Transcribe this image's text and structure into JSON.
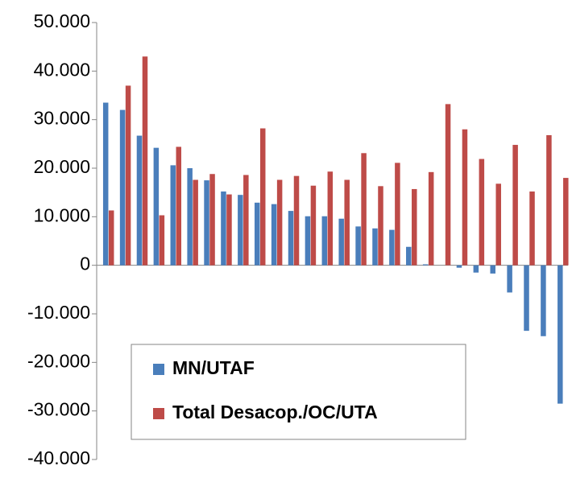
{
  "chart_data": {
    "type": "bar",
    "categories": [
      null,
      null,
      null,
      null,
      null,
      null,
      null,
      null,
      null,
      null,
      null,
      null,
      null,
      null,
      null,
      null,
      null,
      null,
      null,
      null,
      null,
      null,
      null,
      null,
      null,
      null,
      null,
      null
    ],
    "series": [
      {
        "name": "MN/UTAF",
        "color": "#4a7ebb",
        "values": [
          33500,
          32000,
          26700,
          24200,
          20600,
          20000,
          17500,
          15200,
          14500,
          12900,
          12600,
          11200,
          10100,
          10100,
          9600,
          8000,
          7600,
          7300,
          3800,
          200,
          0,
          -500,
          -1500,
          -1700,
          -5600,
          -13500,
          -14600,
          -28500
        ]
      },
      {
        "name": "Total Desacop./OC/UTA",
        "color": "#be4b48",
        "values": [
          11300,
          37000,
          43000,
          10300,
          24400,
          17600,
          18800,
          14600,
          18600,
          28200,
          17600,
          18400,
          16400,
          19300,
          17600,
          23100,
          16300,
          21100,
          15700,
          19200,
          33200,
          28000,
          21900,
          16800,
          24800,
          15200,
          26800,
          18000
        ]
      }
    ],
    "ylim": [
      -40000,
      50000
    ],
    "yticks": [
      {
        "value": -40000,
        "label": "-40.000"
      },
      {
        "value": -30000,
        "label": "-30.000"
      },
      {
        "value": -20000,
        "label": "-20.000"
      },
      {
        "value": -10000,
        "label": "-10.000"
      },
      0,
      {
        "value": 10000,
        "label": "10.000"
      },
      {
        "value": 20000,
        "label": "20.000"
      },
      {
        "value": 30000,
        "label": "30.000"
      },
      {
        "value": 40000,
        "label": "40.000"
      },
      {
        "value": 50000,
        "label": "50.000"
      }
    ],
    "grid": false,
    "legend": "bottom-left"
  }
}
